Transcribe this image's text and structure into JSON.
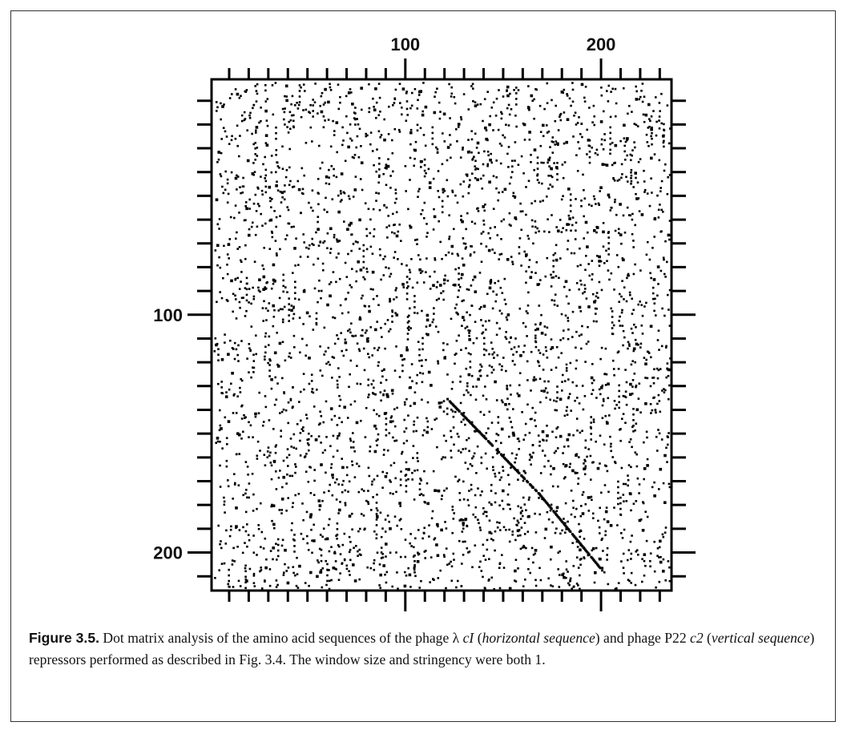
{
  "figure": {
    "label": "Figure 3.5.",
    "caption": {
      "t1": " Dot matrix analysis of the amino acid sequences of the phage λ ",
      "t2": "cI",
      "t3": " (",
      "t4": "horizontal sequence",
      "t5": ") and phage P22 ",
      "t6": "c2",
      "t7": " (",
      "t8": "vertical sequence",
      "t9": ") repressors performed as described in Fig. 3.4. The window size and stringency were both 1."
    }
  },
  "chart_data": {
    "type": "scatter",
    "title": "",
    "xlabel": "",
    "ylabel": "",
    "x_ticks": [
      100,
      200
    ],
    "y_ticks": [
      100,
      200
    ],
    "xlim": [
      1,
      236
    ],
    "ylim": [
      1,
      216
    ],
    "x_minor_step": 10,
    "y_minor_step": 10,
    "x_axis_position": "top",
    "y_axis_position": "left",
    "y_inverted": true,
    "grid": false,
    "legend": "none",
    "dot_color": "#000000",
    "diagonal_segments": [
      {
        "x": [
          121,
          168
        ],
        "y": [
          135,
          175
        ]
      },
      {
        "x": [
          168,
          200
        ],
        "y": [
          175,
          207
        ]
      }
    ]
  }
}
